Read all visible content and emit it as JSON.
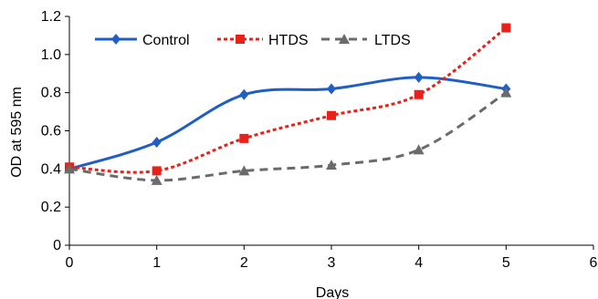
{
  "chart_data": {
    "type": "line",
    "xlabel": "Days",
    "ylabel": "OD at 595 nm",
    "xlim": [
      0,
      6
    ],
    "ylim": [
      0,
      1.2
    ],
    "x_ticks": [
      "0",
      "1",
      "2",
      "3",
      "4",
      "5",
      "6"
    ],
    "y_ticks": [
      "0",
      "0.2",
      "0.4",
      "0.6",
      "0.8",
      "1.0",
      "1.2"
    ],
    "x": [
      0,
      1,
      2,
      3,
      4,
      5
    ],
    "grid": false,
    "legend_position": "top-left",
    "series": [
      {
        "name": "Control",
        "values": [
          0.4,
          0.54,
          0.79,
          0.82,
          0.88,
          0.82
        ],
        "color": "#1f5fc4",
        "marker": "diamond",
        "dash": "solid"
      },
      {
        "name": "HTDS",
        "values": [
          0.41,
          0.39,
          0.56,
          0.68,
          0.79,
          1.14
        ],
        "color": "#e8211b",
        "marker": "square",
        "dash": "dotted"
      },
      {
        "name": "LTDS",
        "values": [
          0.4,
          0.34,
          0.39,
          0.42,
          0.5,
          0.8
        ],
        "color": "#6b6b6b",
        "marker": "triangle",
        "dash": "dashed"
      }
    ]
  }
}
